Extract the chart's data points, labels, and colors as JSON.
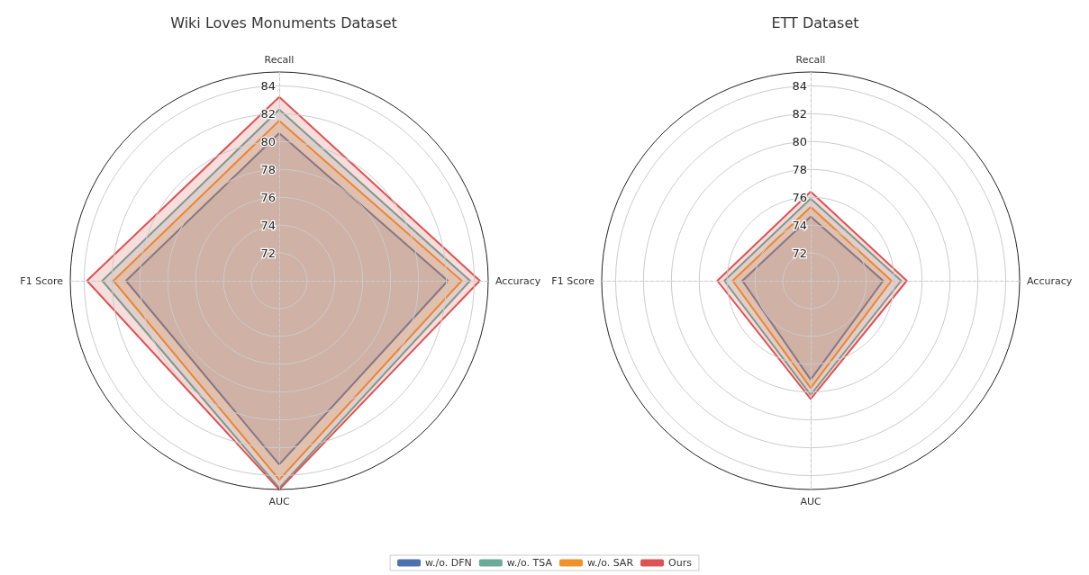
{
  "chart_data": [
    {
      "type": "radar",
      "title": "Wiki Loves Monuments Dataset",
      "categories": [
        "Recall",
        "Accuracy",
        "AUC",
        "F1 Score"
      ],
      "ylim": [
        70,
        85
      ],
      "yticks": [
        72,
        74,
        76,
        78,
        80,
        82,
        84
      ],
      "grid": true,
      "legend": "bottom",
      "marker": "none",
      "series": [
        {
          "name": "w./o. DFN",
          "color": "#4c72b0",
          "values": [
            80.6,
            82.1,
            83.2,
            81.0
          ]
        },
        {
          "name": "w./o. TSA",
          "color": "#6aaa9a",
          "values": [
            82.3,
            83.7,
            84.9,
            82.7
          ]
        },
        {
          "name": "w./o. SAR",
          "color": "#f0922b",
          "values": [
            81.5,
            83.1,
            84.3,
            81.9
          ]
        },
        {
          "name": "Ours",
          "color": "#dd5353",
          "values": [
            83.2,
            84.4,
            85.0,
            83.8
          ]
        }
      ]
    },
    {
      "type": "radar",
      "title": "ETT Dataset",
      "categories": [
        "Recall",
        "Accuracy",
        "AUC",
        "F1 Score"
      ],
      "ylim": [
        70,
        85
      ],
      "yticks": [
        72,
        74,
        76,
        78,
        80,
        82,
        84
      ],
      "grid": true,
      "marker": "none",
      "series": [
        {
          "color": "#4c72b0",
          "values": [
            74.6,
            75.2,
            77.1,
            74.9
          ]
        },
        {
          "color": "#6aaa9a",
          "values": [
            75.9,
            76.5,
            78.2,
            76.2
          ]
        },
        {
          "color": "#f0922b",
          "values": [
            75.3,
            75.8,
            77.7,
            75.6
          ]
        },
        {
          "color": "#dd5353",
          "values": [
            76.4,
            76.9,
            78.5,
            76.7
          ]
        }
      ]
    }
  ]
}
